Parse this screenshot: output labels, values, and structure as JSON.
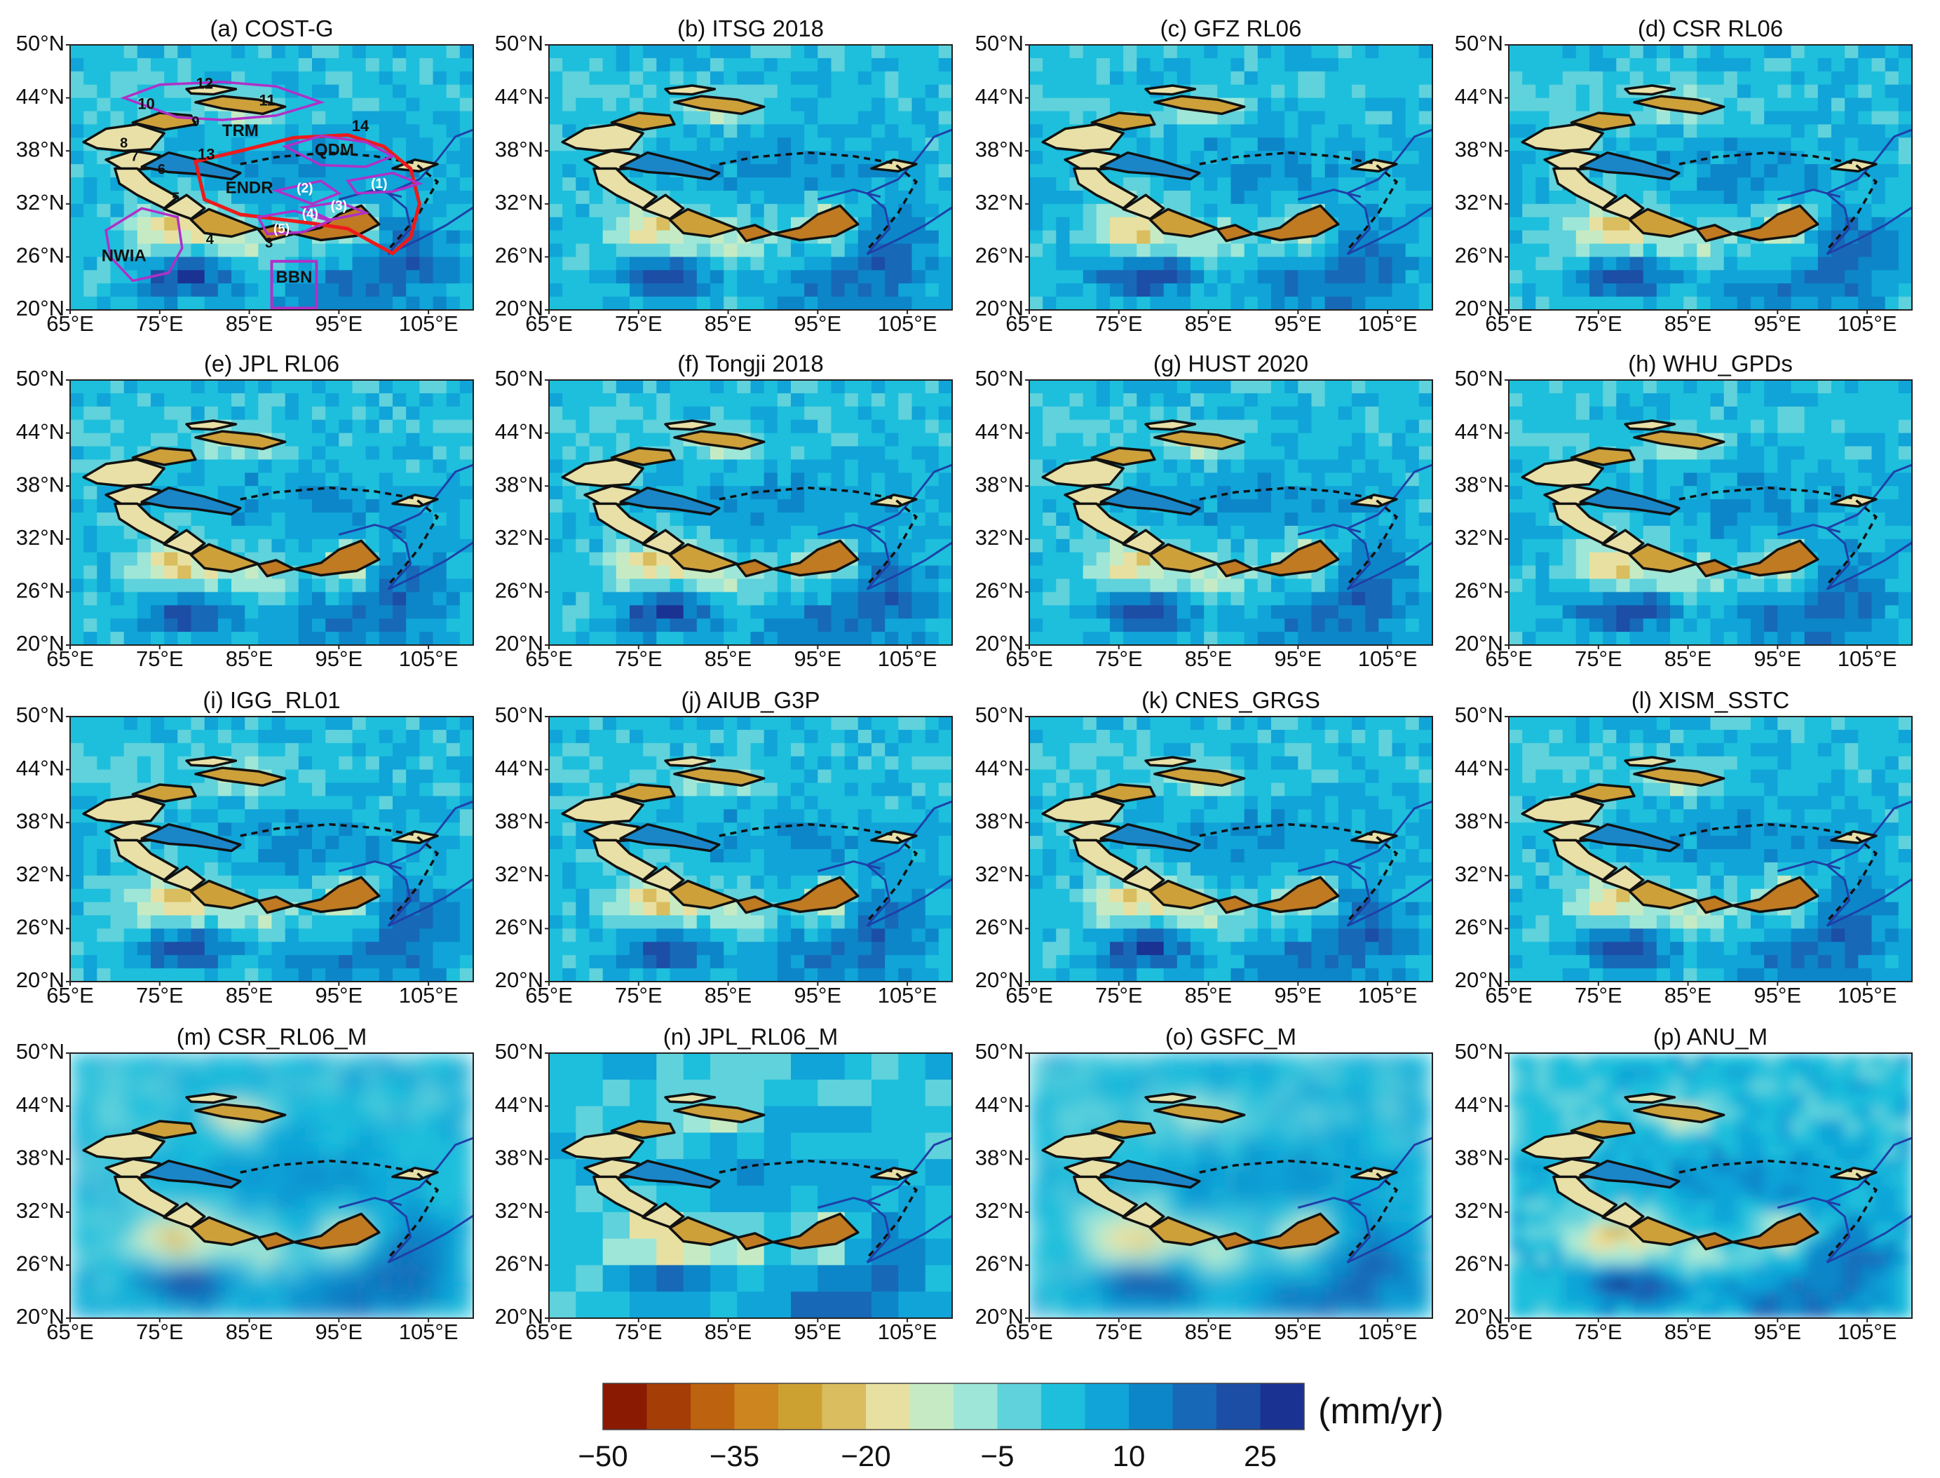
{
  "figure": {
    "units_label": "(mm/yr)",
    "x_ticks": [
      "65°E",
      "75°E",
      "85°E",
      "95°E",
      "105°E"
    ],
    "y_ticks": [
      "50°N",
      "44°N",
      "38°N",
      "32°N",
      "26°N",
      "20°N"
    ]
  },
  "chart_data": {
    "type": "heatmap",
    "description_kind": "gridded water storage trend maps, 16 panels (4x4)",
    "lon_range": [
      65,
      110
    ],
    "lat_range": [
      20,
      50
    ],
    "colorbar": {
      "min": -50,
      "max": 30,
      "step": 5,
      "tick_labels": [
        "−50",
        "−35",
        "−20",
        "−5",
        "10",
        "25"
      ],
      "tick_values": [
        -50,
        -35,
        -20,
        -5,
        10,
        25
      ],
      "colors": [
        "#8b1a02",
        "#a53d06",
        "#bd620f",
        "#cd8520",
        "#cda032",
        "#d9bd5e",
        "#e8e0a0",
        "#c6ebc4",
        "#9ee6d7",
        "#5fd2dc",
        "#1dbfdc",
        "#10a4d8",
        "#0c86c9",
        "#1769b8",
        "#1c4ea6",
        "#1a3292"
      ]
    },
    "panels": [
      {
        "label": "(a) COST-G",
        "title": "(a) COST-G",
        "style": "grid",
        "annotated": true
      },
      {
        "label": "(b) ITSG 2018",
        "title": "(b) ITSG 2018",
        "style": "grid"
      },
      {
        "label": "(c) GFZ RL06",
        "title": "(c) GFZ RL06",
        "style": "grid"
      },
      {
        "label": "(d) CSR RL06",
        "title": "(d) CSR RL06",
        "style": "grid"
      },
      {
        "label": "(e) JPL RL06",
        "title": "(e)  JPL RL06",
        "style": "grid"
      },
      {
        "label": "(f) Tongji 2018",
        "title": "(f) Tongji 2018",
        "style": "grid"
      },
      {
        "label": "(g) HUST 2020",
        "title": "(g) HUST 2020",
        "style": "grid"
      },
      {
        "label": "(h) WHU_GPDs",
        "title": "(h) WHU_GPDs",
        "style": "grid"
      },
      {
        "label": "(i) IGG_RL01",
        "title": "(i) IGG_RL01",
        "style": "grid"
      },
      {
        "label": "(j) AIUB_G3P",
        "title": "(j) AIUB_G3P",
        "style": "grid"
      },
      {
        "label": "(k) CNES_GRGS",
        "title": "(k) CNES_GRGS",
        "style": "grid"
      },
      {
        "label": "(l) XISM_SSTC",
        "title": "(l) XISM_SSTC",
        "style": "grid"
      },
      {
        "label": "(m) CSR_RL06_M",
        "title": "(m) CSR_RL06_M",
        "style": "smooth"
      },
      {
        "label": "(n) JPL_RL06_M",
        "title": "(n) JPL_RL06_M",
        "style": "mascon3"
      },
      {
        "label": "(o) GSFC_M",
        "title": "(o) GSFC_M",
        "style": "smooth"
      },
      {
        "label": "(p) ANU_M",
        "title": "(p) ANU_M",
        "style": "smooth"
      }
    ],
    "region_labels": [
      "10",
      "12",
      "11",
      "9",
      "TRM",
      "8",
      "7",
      "6",
      "13",
      "14",
      "QDM",
      "ENDR",
      "(1)",
      "(2)",
      "(3)",
      "(4)",
      "(5)",
      "5",
      "4",
      "3",
      "NWIA",
      "BBN"
    ]
  },
  "colors": {
    "glacier_dark": "#c07a22",
    "glacier_mid": "#cda03a",
    "glacier_light": "#e8e0a6",
    "basin_blue": "#1a86c8",
    "river": "#1f3fa8",
    "endr": "#ee1a1a",
    "purple": "#b030c8"
  }
}
